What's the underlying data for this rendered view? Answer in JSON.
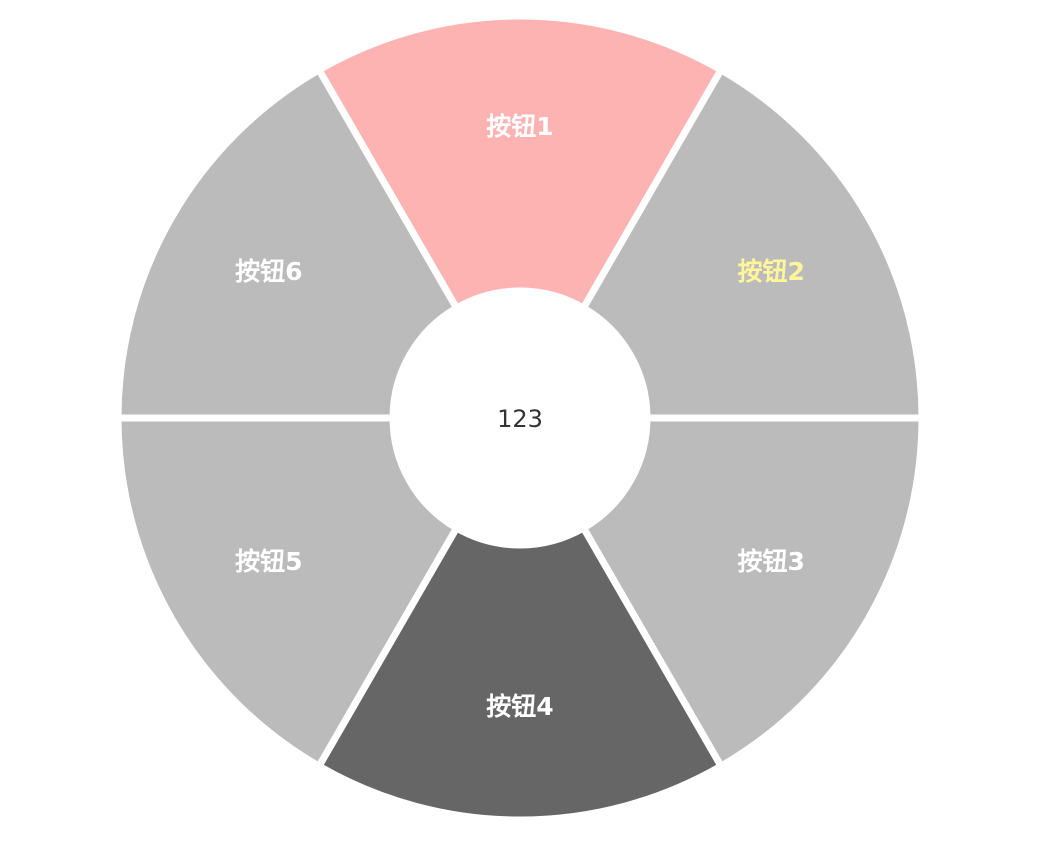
{
  "menu": {
    "center_label": "123",
    "separator_color": "#ffffff",
    "segments": [
      {
        "label": "按钮1",
        "fill": "#feb3b3",
        "text_color": "#ffffff",
        "state": "highlighted"
      },
      {
        "label": "按钮2",
        "fill": "#bbbbbb",
        "text_color": "#fff59a",
        "state": "hover"
      },
      {
        "label": "按钮3",
        "fill": "#bbbbbb",
        "text_color": "#ffffff",
        "state": "normal"
      },
      {
        "label": "按钮4",
        "fill": "#666666",
        "text_color": "#ffffff",
        "state": "pressed"
      },
      {
        "label": "按钮5",
        "fill": "#bbbbbb",
        "text_color": "#ffffff",
        "state": "normal"
      },
      {
        "label": "按钮6",
        "fill": "#bbbbbb",
        "text_color": "#ffffff",
        "state": "normal"
      }
    ]
  }
}
